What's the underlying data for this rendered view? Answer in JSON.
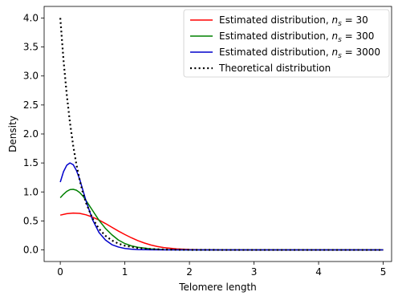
{
  "chart_data": {
    "type": "line",
    "xlabel": "Telomere length",
    "ylabel": "Density",
    "xlim": [
      -0.25,
      5.13
    ],
    "ylim": [
      -0.2,
      4.2
    ],
    "xticks": [
      0,
      1,
      2,
      3,
      4,
      5
    ],
    "yticks": [
      0.0,
      0.5,
      1.0,
      1.5,
      2.0,
      2.5,
      3.0,
      3.5,
      4.0
    ],
    "xtick_labels": [
      "0",
      "1",
      "2",
      "3",
      "4",
      "5"
    ],
    "ytick_labels": [
      "0.0",
      "0.5",
      "1.0",
      "1.5",
      "2.0",
      "2.5",
      "3.0",
      "3.5",
      "4.0"
    ],
    "grid": false,
    "legend_position": "top-right",
    "series": [
      {
        "name_prefix": "Estimated distribution,",
        "name_var": "n",
        "name_sub": "s",
        "name_suffix": " = 30",
        "color": "#ff0000",
        "style": "solid",
        "x": [
          0.0,
          0.1,
          0.2,
          0.3,
          0.4,
          0.5,
          0.6,
          0.7,
          0.8,
          0.9,
          1.0,
          1.1,
          1.2,
          1.3,
          1.4,
          1.5,
          1.6,
          1.8,
          2.0,
          2.2,
          2.5,
          3.0,
          4.0,
          5.0
        ],
        "y": [
          0.6,
          0.625,
          0.635,
          0.63,
          0.605,
          0.565,
          0.515,
          0.455,
          0.39,
          0.325,
          0.265,
          0.21,
          0.16,
          0.12,
          0.085,
          0.06,
          0.04,
          0.018,
          0.008,
          0.003,
          0.001,
          0.0,
          0.0,
          0.0
        ]
      },
      {
        "name_prefix": "Estimated distribution,",
        "name_var": "n",
        "name_sub": "s",
        "name_suffix": " = 300",
        "color": "#008000",
        "style": "solid",
        "x": [
          0.0,
          0.05,
          0.1,
          0.15,
          0.2,
          0.25,
          0.3,
          0.35,
          0.4,
          0.5,
          0.6,
          0.7,
          0.8,
          0.9,
          1.0,
          1.1,
          1.2,
          1.4,
          1.6,
          1.8,
          2.0,
          2.5,
          3.0,
          4.0,
          5.0
        ],
        "y": [
          0.9,
          0.96,
          1.01,
          1.04,
          1.045,
          1.03,
          0.99,
          0.93,
          0.85,
          0.68,
          0.51,
          0.37,
          0.26,
          0.17,
          0.11,
          0.07,
          0.045,
          0.018,
          0.006,
          0.002,
          0.001,
          0.0,
          0.0,
          0.0,
          0.0
        ]
      },
      {
        "name_prefix": "Estimated distribution,",
        "name_var": "n",
        "name_sub": "s",
        "name_suffix": " = 3000",
        "color": "#0000cc",
        "style": "solid",
        "x": [
          0.0,
          0.05,
          0.1,
          0.15,
          0.2,
          0.25,
          0.3,
          0.35,
          0.4,
          0.5,
          0.6,
          0.7,
          0.8,
          0.9,
          1.0,
          1.1,
          1.2,
          1.4,
          1.6,
          1.8,
          2.0,
          2.5,
          3.0,
          4.0,
          5.0
        ],
        "y": [
          1.17,
          1.35,
          1.46,
          1.5,
          1.47,
          1.37,
          1.22,
          1.03,
          0.84,
          0.52,
          0.3,
          0.17,
          0.09,
          0.05,
          0.025,
          0.012,
          0.006,
          0.002,
          0.0,
          0.0,
          0.0,
          0.0,
          0.0,
          0.0,
          0.0
        ]
      },
      {
        "name": "Theoretical distribution",
        "color": "#000000",
        "style": "dotted",
        "x": [
          0.0,
          0.05,
          0.1,
          0.15,
          0.2,
          0.25,
          0.3,
          0.35,
          0.4,
          0.5,
          0.6,
          0.7,
          0.8,
          0.9,
          1.0,
          1.2,
          1.4,
          1.6,
          1.8,
          2.0,
          2.5,
          3.0,
          4.0,
          5.0
        ],
        "y": [
          4.0,
          3.275,
          2.681,
          2.195,
          1.797,
          1.472,
          1.205,
          0.986,
          0.808,
          0.541,
          0.363,
          0.243,
          0.163,
          0.109,
          0.073,
          0.033,
          0.015,
          0.007,
          0.003,
          0.001,
          0.0,
          0.0,
          0.0,
          0.0
        ]
      }
    ]
  }
}
